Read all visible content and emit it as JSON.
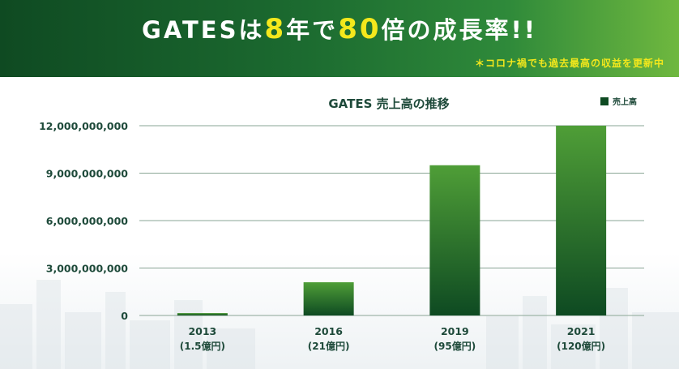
{
  "banner": {
    "headline_parts": [
      {
        "text": "GATESは",
        "highlight": false
      },
      {
        "text": "8",
        "highlight": true
      },
      {
        "text": "年で",
        "highlight": false
      },
      {
        "text": "80",
        "highlight": true
      },
      {
        "text": "倍の成長率!!",
        "highlight": false
      }
    ],
    "subnote": "＊コロナ禍でも過去最高の収益を更新中"
  },
  "colors": {
    "banner_dark": "#0f4a22",
    "banner_light": "#6fb83f",
    "highlight": "#f4e81c",
    "bar_top": "#4f9e37",
    "bar_bottom": "#0e4a22",
    "text_dark": "#1e4a3a"
  },
  "chart_data": {
    "type": "bar",
    "title": "GATES 売上高の推移",
    "categories": [
      "2013",
      "2016",
      "2019",
      "2021"
    ],
    "category_sublabels": [
      "(1.5億円)",
      "(21億円)",
      "(95億円)",
      "(120億円)"
    ],
    "series": [
      {
        "name": "売上高",
        "values": [
          150000000,
          2100000000,
          9500000000,
          12000000000
        ]
      }
    ],
    "yticks": [
      0,
      3000000000,
      6000000000,
      9000000000,
      12000000000
    ],
    "ytick_labels": [
      "0",
      "3,000,000,000",
      "6,000,000,000",
      "9,000,000,000",
      "12,000,000,000"
    ],
    "ylim": [
      0,
      12000000000
    ],
    "grid": true,
    "legend": "top-right"
  }
}
